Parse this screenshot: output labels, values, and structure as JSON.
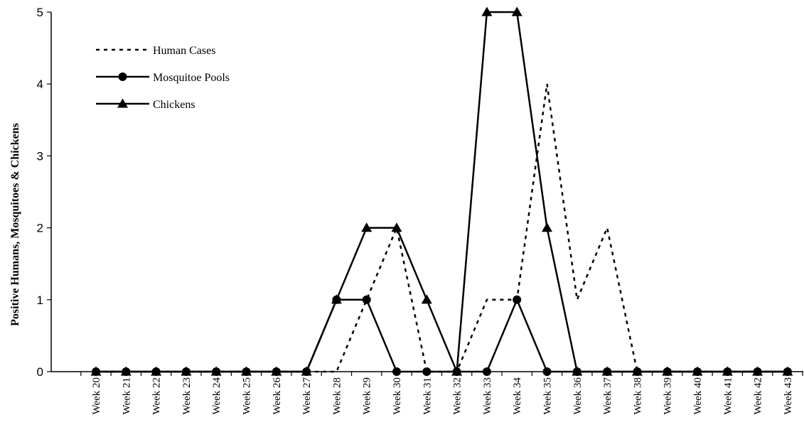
{
  "chart_data": {
    "type": "line",
    "title": "",
    "xlabel": "",
    "ylabel": "Positive Humans, Mosquitoes & Chickens",
    "ylim": [
      0,
      5
    ],
    "yticks": [
      "0",
      "1",
      "2",
      "3",
      "4",
      "5"
    ],
    "grid": false,
    "legend_position": "top-left",
    "categories": [
      "Week 20",
      "Week 21",
      "Week 22",
      "Week 23",
      "Week 24",
      "Week 25",
      "Week 26",
      "Week 27",
      "Week 28",
      "Week 29",
      "Week 30",
      "Week 31",
      "Week 32",
      "Week 33",
      "Week 34",
      "Week 35",
      "Week 36",
      "Week 37",
      "Week 38",
      "Week 39",
      "Week 40",
      "Week 41",
      "Week 42",
      "Week 43"
    ],
    "series": [
      {
        "name": "Human Cases",
        "style": "dashed",
        "marker": "none",
        "values": [
          0,
          0,
          0,
          0,
          0,
          0,
          0,
          0,
          0,
          1,
          2,
          0,
          0,
          1,
          1,
          4,
          1,
          2,
          0,
          0,
          0,
          0,
          0,
          0
        ]
      },
      {
        "name": "Mosquitoe Pools",
        "style": "solid",
        "marker": "circle",
        "values": [
          0,
          0,
          0,
          0,
          0,
          0,
          0,
          0,
          1,
          1,
          0,
          0,
          0,
          0,
          1,
          0,
          0,
          0,
          0,
          0,
          0,
          0,
          0,
          0
        ]
      },
      {
        "name": "Chickens",
        "style": "solid",
        "marker": "triangle",
        "values": [
          0,
          0,
          0,
          0,
          0,
          0,
          0,
          0,
          1,
          2,
          2,
          1,
          0,
          5,
          5,
          2,
          0,
          0,
          0,
          0,
          0,
          0,
          0,
          0
        ]
      }
    ],
    "colors": {
      "line": "#000000",
      "background": "#ffffff"
    }
  }
}
